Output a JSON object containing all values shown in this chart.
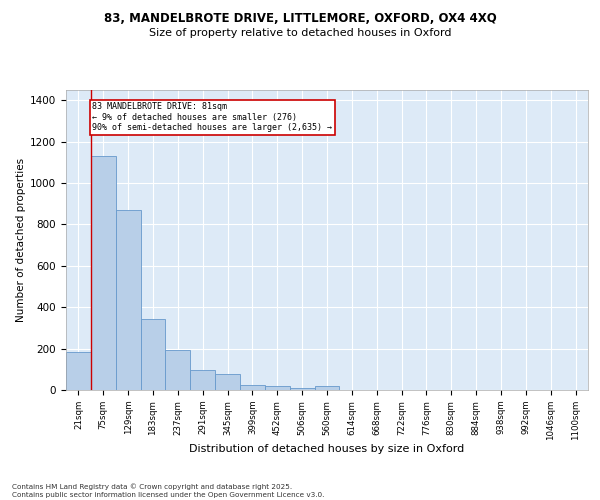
{
  "title_line1": "83, MANDELBROTE DRIVE, LITTLEMORE, OXFORD, OX4 4XQ",
  "title_line2": "Size of property relative to detached houses in Oxford",
  "xlabel": "Distribution of detached houses by size in Oxford",
  "ylabel": "Number of detached properties",
  "bar_color": "#b8cfe8",
  "bar_edge_color": "#6699cc",
  "annotation_line_color": "#cc0000",
  "annotation_box_color": "#cc0000",
  "annotation_text_line1": "83 MANDELBROTE DRIVE: 81sqm",
  "annotation_text_line2": "← 9% of detached houses are smaller (276)",
  "annotation_text_line3": "90% of semi-detached houses are larger (2,635) →",
  "property_bin_index": 1,
  "categories": [
    "21sqm",
    "75sqm",
    "129sqm",
    "183sqm",
    "237sqm",
    "291sqm",
    "345sqm",
    "399sqm",
    "452sqm",
    "506sqm",
    "560sqm",
    "614sqm",
    "668sqm",
    "722sqm",
    "776sqm",
    "830sqm",
    "884sqm",
    "938sqm",
    "992sqm",
    "1046sqm",
    "1100sqm"
  ],
  "bar_values": [
    185,
    1130,
    870,
    345,
    195,
    95,
    75,
    25,
    18,
    12,
    20,
    0,
    0,
    0,
    0,
    0,
    0,
    0,
    0,
    0,
    0
  ],
  "ylim": [
    0,
    1450
  ],
  "yticks": [
    0,
    200,
    400,
    600,
    800,
    1000,
    1200,
    1400
  ],
  "background_color": "#ddeaf7",
  "footer_line1": "Contains HM Land Registry data © Crown copyright and database right 2025.",
  "footer_line2": "Contains public sector information licensed under the Open Government Licence v3.0."
}
